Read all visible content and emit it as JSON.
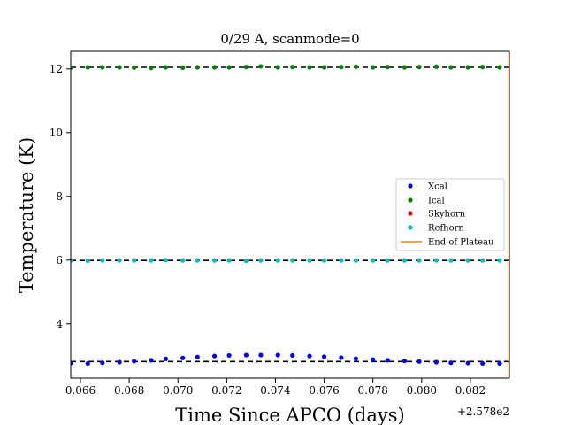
{
  "chart_data": {
    "type": "scatter",
    "title": "0/29 A, scanmode=0",
    "xlabel": "Time Since APCO (days)",
    "ylabel": "Temperature (K)",
    "x_offset_label": "+2.578e2",
    "xlim": [
      257.8656,
      257.8836
    ],
    "ylim": [
      2.3,
      12.55
    ],
    "x_ticks": [
      257.866,
      257.868,
      257.87,
      257.872,
      257.874,
      257.876,
      257.878,
      257.88,
      257.882
    ],
    "x_tick_labels": [
      "0.066",
      "0.068",
      "0.070",
      "0.072",
      "0.074",
      "0.076",
      "0.078",
      "0.080",
      "0.082"
    ],
    "y_ticks": [
      4,
      6,
      8,
      10,
      12
    ],
    "y_tick_labels": [
      "4",
      "6",
      "8",
      "10",
      "12"
    ],
    "grid": false,
    "legend_position": "center-right",
    "reference_lines_y": [
      12.05,
      5.99,
      2.82
    ],
    "end_of_plateau_x": 257.8836,
    "colors": {
      "Xcal": "#0000ff",
      "Ical": "#008000",
      "Skyhorn": "#ff0000",
      "Refhorn": "#00bfbf",
      "End of Plateau": "#ff7f0e",
      "reference_line": "#000000"
    },
    "x": [
      257.8656,
      257.8663,
      257.8669,
      257.8676,
      257.8682,
      257.8689,
      257.8695,
      257.8702,
      257.8708,
      257.8715,
      257.8721,
      257.8728,
      257.8734,
      257.8741,
      257.8747,
      257.8754,
      257.876,
      257.8767,
      257.8773,
      257.878,
      257.8786,
      257.8793,
      257.8799,
      257.8806,
      257.8812,
      257.8819,
      257.8825,
      257.8832
    ],
    "series": [
      {
        "name": "Xcal",
        "values": [
          2.77,
          2.76,
          2.78,
          2.8,
          2.83,
          2.86,
          2.9,
          2.93,
          2.96,
          2.99,
          3.01,
          3.02,
          3.02,
          3.02,
          3.01,
          2.99,
          2.97,
          2.94,
          2.91,
          2.88,
          2.86,
          2.84,
          2.82,
          2.8,
          2.78,
          2.77,
          2.76,
          2.76
        ]
      },
      {
        "name": "Ical",
        "values": [
          12.04,
          12.05,
          12.05,
          12.05,
          12.04,
          12.03,
          12.05,
          12.04,
          12.05,
          12.05,
          12.05,
          12.06,
          12.08,
          12.05,
          12.06,
          12.05,
          12.05,
          12.06,
          12.07,
          12.05,
          12.06,
          12.05,
          12.06,
          12.07,
          12.05,
          12.05,
          12.06,
          12.05
        ]
      },
      {
        "name": "Skyhorn",
        "values": []
      },
      {
        "name": "Refhorn",
        "values": [
          5.99,
          5.98,
          5.99,
          5.99,
          5.99,
          5.99,
          6.0,
          5.99,
          5.99,
          5.99,
          5.99,
          5.98,
          5.99,
          5.99,
          5.99,
          5.99,
          5.99,
          5.99,
          5.99,
          5.99,
          5.99,
          5.99,
          5.99,
          5.99,
          5.99,
          5.99,
          5.99,
          5.99
        ]
      }
    ],
    "legend": [
      "Xcal",
      "Ical",
      "Skyhorn",
      "Refhorn",
      "End of Plateau"
    ]
  }
}
